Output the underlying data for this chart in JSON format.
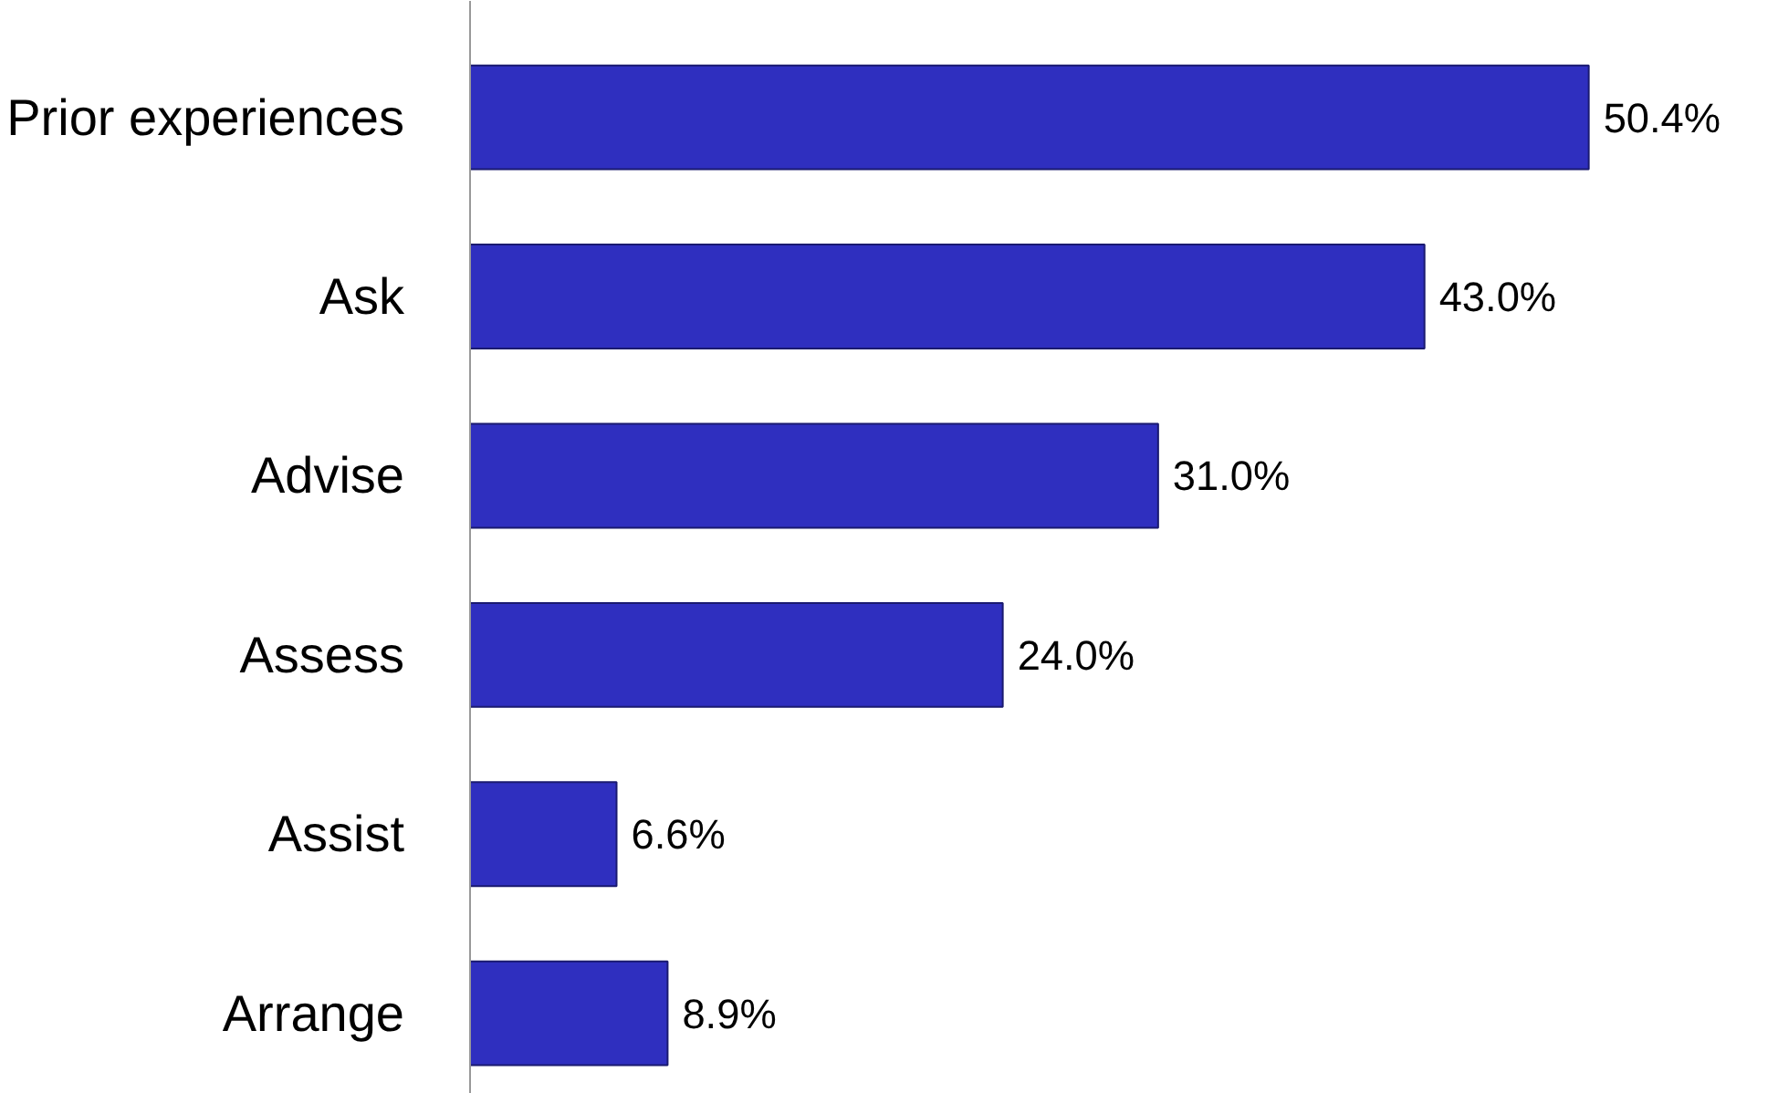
{
  "chart_data": {
    "type": "bar",
    "orientation": "horizontal",
    "categories": [
      "Prior experiences",
      "Ask",
      "Advise",
      "Assess",
      "Assist",
      "Arrange"
    ],
    "values": [
      50.4,
      43.0,
      31.0,
      24.0,
      6.6,
      8.9
    ],
    "value_labels": [
      "50.4%",
      "43.0%",
      "31.0%",
      "24.0%",
      "6.6%",
      "8.9%"
    ],
    "color": "#2f2fbf",
    "grid": false
  }
}
